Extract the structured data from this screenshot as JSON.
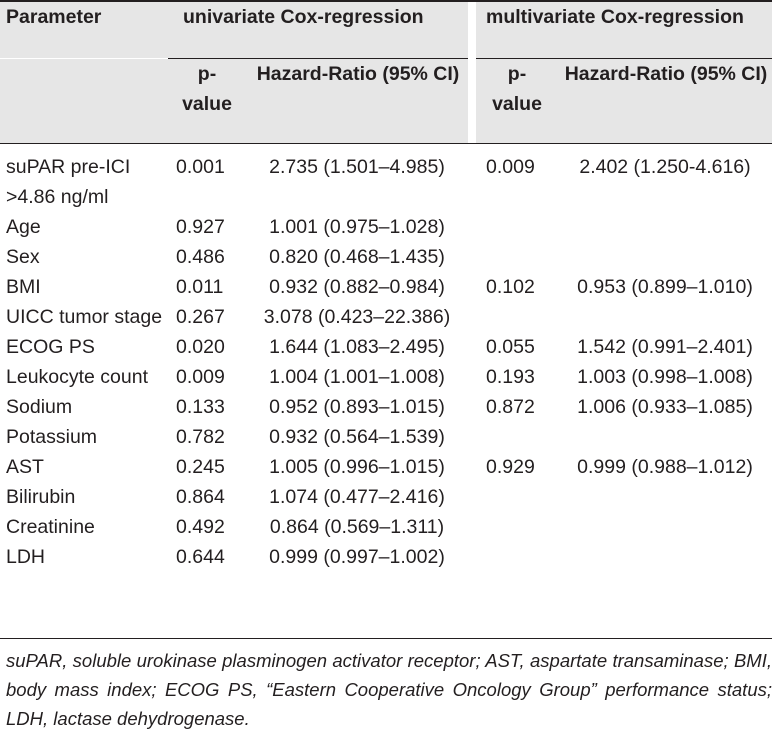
{
  "table": {
    "header": {
      "parameter": "Parameter",
      "univariate": "univariate Cox-regression",
      "multivariate": "multivariate Cox-regression",
      "p_value_uni": "p-value",
      "hr_uni": "Hazard-Ratio (95% CI)",
      "p_value_multi": "p-value",
      "hr_multi": "Hazard-Ratio (95% CI)"
    },
    "rows": [
      {
        "parameter": "suPAR pre-ICI >4.86 ng/ml",
        "p_uni": "0.001",
        "hr_uni": "2.735 (1.501–4.985)",
        "p_multi": "0.009",
        "hr_multi": "2.402 (1.250-4.616)"
      },
      {
        "parameter": "Age",
        "p_uni": "0.927",
        "hr_uni": "1.001 (0.975–1.028)",
        "p_multi": "",
        "hr_multi": ""
      },
      {
        "parameter": "Sex",
        "p_uni": "0.486",
        "hr_uni": "0.820 (0.468–1.435)",
        "p_multi": "",
        "hr_multi": ""
      },
      {
        "parameter": "BMI",
        "p_uni": "0.011",
        "hr_uni": "0.932 (0.882–0.984)",
        "p_multi": "0.102",
        "hr_multi": "0.953 (0.899–1.010)"
      },
      {
        "parameter": "UICC tumor stage",
        "p_uni": "0.267",
        "hr_uni": "3.078 (0.423–22.386)",
        "p_multi": "",
        "hr_multi": ""
      },
      {
        "parameter": "ECOG PS",
        "p_uni": "0.020",
        "hr_uni": "1.644 (1.083–2.495)",
        "p_multi": "0.055",
        "hr_multi": "1.542 (0.991–2.401)"
      },
      {
        "parameter": "Leukocyte count",
        "p_uni": "0.009",
        "hr_uni": "1.004 (1.001–1.008)",
        "p_multi": "0.193",
        "hr_multi": "1.003 (0.998–1.008)"
      },
      {
        "parameter": "Sodium",
        "p_uni": "0.133",
        "hr_uni": "0.952 (0.893–1.015)",
        "p_multi": "0.872",
        "hr_multi": "1.006 (0.933–1.085)"
      },
      {
        "parameter": "Potassium",
        "p_uni": "0.782",
        "hr_uni": "0.932 (0.564–1.539)",
        "p_multi": "",
        "hr_multi": ""
      },
      {
        "parameter": "AST",
        "p_uni": "0.245",
        "hr_uni": "1.005 (0.996–1.015)",
        "p_multi": "0.929",
        "hr_multi": "0.999 (0.988–1.012)"
      },
      {
        "parameter": "Bilirubin",
        "p_uni": "0.864",
        "hr_uni": "1.074 (0.477–2.416)",
        "p_multi": "",
        "hr_multi": ""
      },
      {
        "parameter": "Creatinine",
        "p_uni": "0.492",
        "hr_uni": "0.864 (0.569–1.311)",
        "p_multi": "",
        "hr_multi": ""
      },
      {
        "parameter": "LDH",
        "p_uni": "0.644",
        "hr_uni": "0.999 (0.997–1.002)",
        "p_multi": "",
        "hr_multi": ""
      }
    ]
  },
  "footnote": "suPAR, soluble urokinase plasminogen activator receptor; AST, aspartate transaminase; BMI, body mass index; ECOG PS, “Eastern Cooperative Oncology Group” performance status; LDH, lactase dehydrogenase."
}
